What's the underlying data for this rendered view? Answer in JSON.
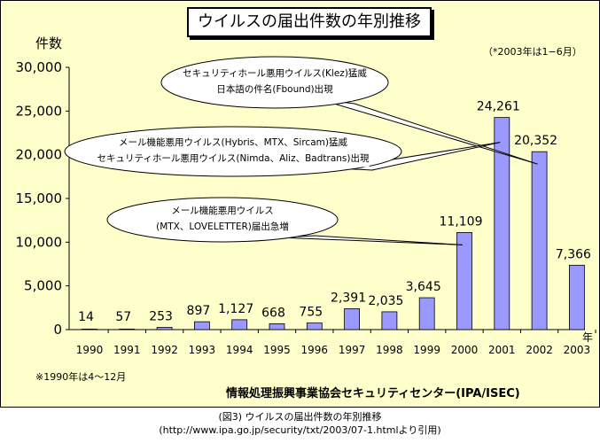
{
  "chart_data": {
    "type": "bar",
    "title": "ウイルスの届出件数の年別推移",
    "ylabel": "件数",
    "xlabel": "年",
    "categories": [
      "1990",
      "1991",
      "1992",
      "1993",
      "1994",
      "1995",
      "1996",
      "1997",
      "1998",
      "1999",
      "2000",
      "2001",
      "2002",
      "2003"
    ],
    "values": [
      14,
      57,
      253,
      897,
      1127,
      668,
      755,
      2391,
      2035,
      3645,
      11109,
      24261,
      20352,
      7366
    ],
    "data_labels": [
      "14",
      "57",
      "253",
      "897",
      "1,127",
      "668",
      "755",
      "2,391",
      "2,035",
      "3,645",
      "11,109",
      "24,261",
      "20,352",
      "7,366"
    ],
    "yticks": [
      "0",
      "5,000",
      "10,000",
      "15,000",
      "20,000",
      "25,000",
      "30,000"
    ],
    "ylim": [
      0,
      30000
    ],
    "grid": false,
    "bar_color": "#9999ff",
    "background_color": "#ffffcc",
    "annotations": [
      {
        "lines": [
          "セキュリティホール悪用ウイルス(Klez)猛威",
          "日本語の件名(Fbound)出現"
        ],
        "points_to": "2002"
      },
      {
        "lines": [
          "メール機能悪用ウイルス(Hybris、MTX、Sircam)猛威",
          "セキュリティホール悪用ウイルス(Nimda、Aliz、Badtrans)出現"
        ],
        "points_to": "2001"
      },
      {
        "lines": [
          "メール機能悪用ウイルス",
          "(MTX、LOVELETTER)届出急増"
        ],
        "points_to": "2000"
      }
    ]
  },
  "notes": {
    "top_right": "（*2003年は1−6月）",
    "bottom_left": "※1990年は4〜12月"
  },
  "source": "情報処理振興事業協会セキュリティセンター(IPA/ISEC)",
  "caption": {
    "line1": "(図3) ウイルスの届出件数の年別推移",
    "line2": "(http://www.ipa.go.jp/security/txt/2003/07-1.htmlより引用)"
  }
}
